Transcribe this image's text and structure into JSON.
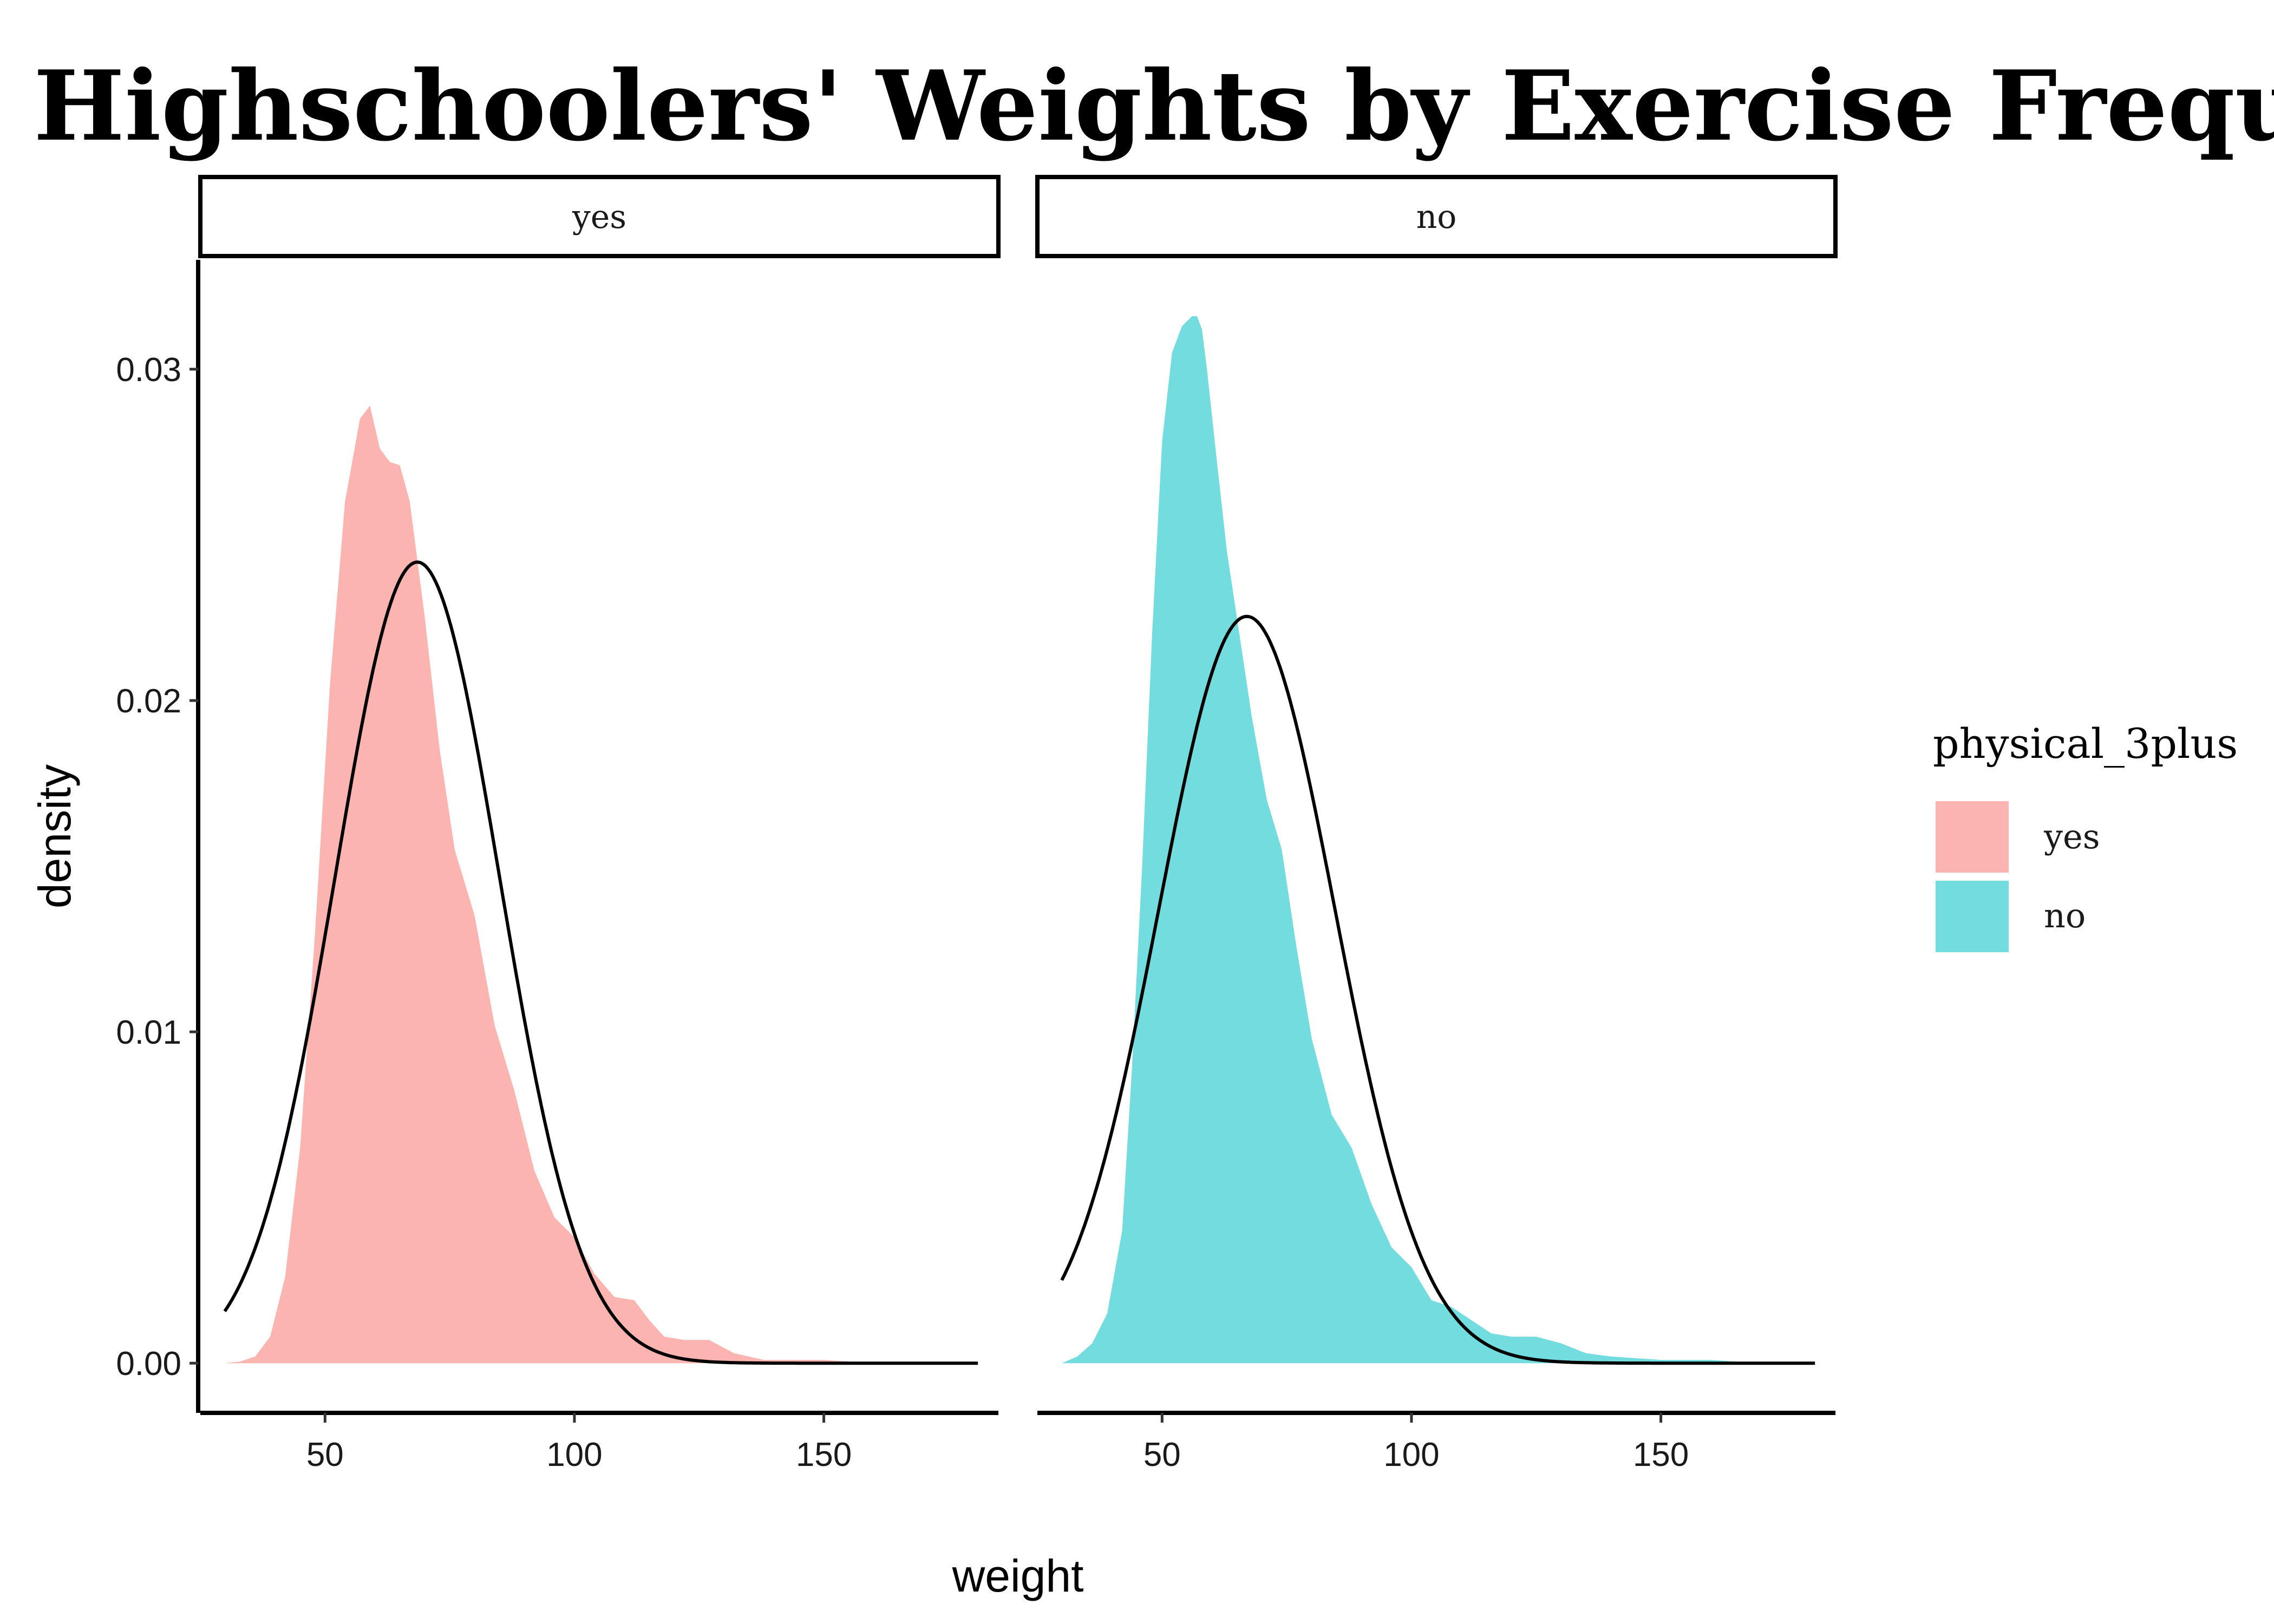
{
  "chart_data": {
    "type": "area",
    "title": "Highschoolers' Weights by Exercise Frequency",
    "xlabel": "weight",
    "ylabel": "density",
    "xlim": [
      25,
      185
    ],
    "ylim": [
      -0.0015,
      0.0333
    ],
    "x_ticks": [
      50,
      100,
      150
    ],
    "x_tick_labels": [
      "50",
      "100",
      "150"
    ],
    "y_ticks": [
      0,
      0.01,
      0.02,
      0.03
    ],
    "y_tick_labels": [
      "0.00",
      "0.01",
      "0.02",
      "0.03"
    ],
    "grid": false,
    "legend": {
      "title": "physical_3plus",
      "position": "right",
      "entries": [
        {
          "label": "yes",
          "color": "#F8766D"
        },
        {
          "label": "no",
          "color": "#00BFC4"
        }
      ]
    },
    "fill_opacity": 0.55,
    "normal_curve_color": "#000000",
    "panels": [
      {
        "strip": "yes",
        "fill_color": "#F8766D",
        "density": {
          "x": [
            29.9,
            33,
            36,
            39,
            42,
            45,
            48,
            51,
            54,
            57,
            59,
            61,
            63,
            65,
            67,
            70,
            73,
            76,
            80,
            84,
            88,
            92,
            96,
            100,
            104,
            108,
            112,
            115,
            118,
            122,
            127,
            132,
            138,
            145,
            150,
            160,
            170,
            180.9
          ],
          "y": [
            0.0,
            5e-05,
            0.0002,
            0.0008,
            0.0026,
            0.0065,
            0.013,
            0.0205,
            0.026,
            0.0285,
            0.0289,
            0.0276,
            0.0272,
            0.0271,
            0.026,
            0.0225,
            0.0185,
            0.0155,
            0.0135,
            0.0102,
            0.0082,
            0.0058,
            0.0044,
            0.0038,
            0.0027,
            0.002,
            0.0019,
            0.0013,
            0.0008,
            0.0007,
            0.0007,
            0.0003,
            0.0001,
            0.0001,
            0.0001,
            0.0,
            0.0,
            0.0
          ]
        },
        "normal": {
          "mean": 68.5,
          "sd": 16.5
        }
      },
      {
        "strip": "no",
        "fill_color": "#00BFC4",
        "density": {
          "x": [
            29.9,
            33,
            36,
            39,
            42,
            44,
            46,
            48,
            50,
            52,
            54,
            56,
            57,
            58,
            59,
            61,
            63,
            65,
            68,
            71,
            74,
            77,
            80,
            84,
            88,
            92,
            96,
            100,
            104,
            108,
            112,
            116,
            120,
            125,
            130,
            135,
            140,
            150,
            160,
            170,
            180.9
          ],
          "y": [
            0.0,
            0.0002,
            0.0006,
            0.0015,
            0.004,
            0.009,
            0.015,
            0.022,
            0.0278,
            0.0305,
            0.0313,
            0.0316,
            0.0316,
            0.0312,
            0.03,
            0.0272,
            0.0245,
            0.0225,
            0.0195,
            0.017,
            0.0155,
            0.0125,
            0.0098,
            0.0075,
            0.0065,
            0.0048,
            0.0035,
            0.0029,
            0.0019,
            0.0017,
            0.0013,
            0.0009,
            0.0008,
            0.0008,
            0.0006,
            0.0003,
            0.0002,
            0.0001,
            0.0001,
            0.0,
            0.0
          ]
        },
        "normal": {
          "mean": 67,
          "sd": 17.7
        }
      }
    ]
  }
}
